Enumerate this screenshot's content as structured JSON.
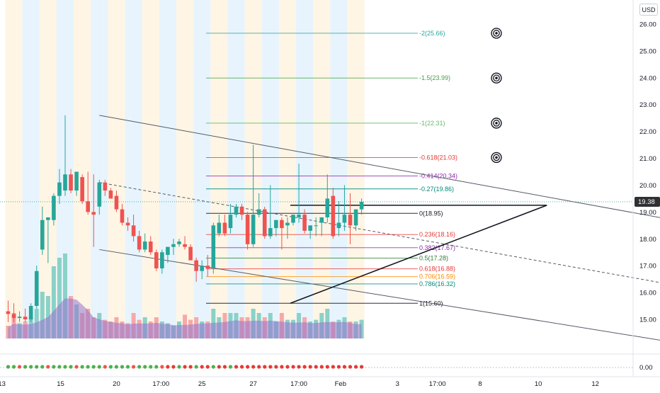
{
  "currency_badge": "USD",
  "last_price_label": "19.38",
  "colors": {
    "up": "#26a69a",
    "down": "#ef5350",
    "session_orange": "#fff3e0",
    "session_blue": "#e3f2fd",
    "volume_up": "#8bd1c8",
    "volume_down": "#f7a9a7",
    "volume_area": "#9575cd",
    "trendline": "#131722",
    "channel": "#787b86"
  },
  "chart_data": {
    "type": "candlestick",
    "y_axis": {
      "min": 14.3,
      "max": 26.8,
      "ticks": [
        "26.00",
        "25.00",
        "24.00",
        "23.00",
        "22.00",
        "21.00",
        "20.00",
        "19.00",
        "18.00",
        "17.00",
        "16.00",
        "15.00"
      ]
    },
    "indicator_axis_ticks": [
      "0.00"
    ],
    "x_axis_ticks": [
      "13",
      "15",
      "20",
      "17:00",
      "25",
      "27",
      "17:00",
      "Feb",
      "3",
      "17:00",
      "8",
      "10",
      "12"
    ],
    "candles": [
      {
        "o": 15.3,
        "h": 15.7,
        "l": 14.9,
        "c": 15.2
      },
      {
        "o": 15.2,
        "h": 15.6,
        "l": 14.9,
        "c": 15.05
      },
      {
        "o": 15.05,
        "h": 15.3,
        "l": 14.9,
        "c": 15.1
      },
      {
        "o": 15.1,
        "h": 15.4,
        "l": 14.9,
        "c": 15.0
      },
      {
        "o": 15.0,
        "h": 15.6,
        "l": 14.9,
        "c": 15.5
      },
      {
        "o": 15.5,
        "h": 17.0,
        "l": 15.4,
        "c": 16.8
      },
      {
        "o": 17.6,
        "h": 19.2,
        "l": 17.4,
        "c": 18.7
      },
      {
        "o": 18.7,
        "h": 18.8,
        "l": 17.1,
        "c": 18.8
      },
      {
        "o": 18.7,
        "h": 19.7,
        "l": 18.5,
        "c": 19.6
      },
      {
        "o": 19.6,
        "h": 20.6,
        "l": 19.3,
        "c": 20.1
      },
      {
        "o": 19.8,
        "h": 22.6,
        "l": 19.6,
        "c": 20.4
      },
      {
        "o": 20.4,
        "h": 20.6,
        "l": 19.7,
        "c": 19.8
      },
      {
        "o": 19.8,
        "h": 20.5,
        "l": 19.6,
        "c": 20.5
      },
      {
        "o": 20.3,
        "h": 20.4,
        "l": 19.3,
        "c": 19.4
      },
      {
        "o": 19.4,
        "h": 20.5,
        "l": 18.9,
        "c": 19.0
      },
      {
        "o": 19.0,
        "h": 20.4,
        "l": 17.7,
        "c": 18.9
      },
      {
        "o": 19.2,
        "h": 20.2,
        "l": 18.9,
        "c": 20.1
      },
      {
        "o": 20.1,
        "h": 20.2,
        "l": 19.6,
        "c": 19.8
      },
      {
        "o": 19.8,
        "h": 19.9,
        "l": 19.5,
        "c": 19.5
      },
      {
        "o": 19.6,
        "h": 19.8,
        "l": 19.0,
        "c": 19.1
      },
      {
        "o": 19.1,
        "h": 19.3,
        "l": 18.5,
        "c": 18.6
      },
      {
        "o": 18.6,
        "h": 18.8,
        "l": 18.3,
        "c": 18.5
      },
      {
        "o": 18.5,
        "h": 18.9,
        "l": 17.9,
        "c": 18.1
      },
      {
        "o": 18.1,
        "h": 18.3,
        "l": 17.5,
        "c": 17.6
      },
      {
        "o": 17.6,
        "h": 18.2,
        "l": 17.5,
        "c": 17.9
      },
      {
        "o": 17.9,
        "h": 18.1,
        "l": 17.4,
        "c": 17.5
      },
      {
        "o": 17.5,
        "h": 17.6,
        "l": 16.8,
        "c": 16.9
      },
      {
        "o": 16.9,
        "h": 17.6,
        "l": 16.7,
        "c": 17.5
      },
      {
        "o": 17.4,
        "h": 17.7,
        "l": 17.1,
        "c": 17.7
      },
      {
        "o": 17.7,
        "h": 18.0,
        "l": 17.4,
        "c": 17.8
      },
      {
        "o": 17.8,
        "h": 18.0,
        "l": 17.7,
        "c": 17.9
      },
      {
        "o": 17.8,
        "h": 18.1,
        "l": 17.6,
        "c": 17.7
      },
      {
        "o": 17.7,
        "h": 17.8,
        "l": 17.2,
        "c": 17.2
      },
      {
        "o": 17.2,
        "h": 17.3,
        "l": 16.4,
        "c": 16.8
      },
      {
        "o": 16.8,
        "h": 17.2,
        "l": 16.5,
        "c": 17.0
      },
      {
        "o": 17.0,
        "h": 17.4,
        "l": 16.6,
        "c": 16.9
      },
      {
        "o": 16.9,
        "h": 18.6,
        "l": 16.7,
        "c": 18.5
      },
      {
        "o": 18.2,
        "h": 18.9,
        "l": 18.1,
        "c": 18.6
      },
      {
        "o": 18.6,
        "h": 18.9,
        "l": 18.1,
        "c": 18.2
      },
      {
        "o": 18.4,
        "h": 19.3,
        "l": 18.2,
        "c": 18.9
      },
      {
        "o": 18.9,
        "h": 19.3,
        "l": 18.8,
        "c": 19.2
      },
      {
        "o": 19.2,
        "h": 19.3,
        "l": 18.7,
        "c": 18.9
      },
      {
        "o": 18.9,
        "h": 19.0,
        "l": 17.6,
        "c": 17.8
      },
      {
        "o": 17.8,
        "h": 21.5,
        "l": 17.7,
        "c": 18.9
      },
      {
        "o": 18.9,
        "h": 19.7,
        "l": 18.8,
        "c": 19.1
      },
      {
        "o": 19.1,
        "h": 19.2,
        "l": 18.0,
        "c": 18.1
      },
      {
        "o": 18.1,
        "h": 20.0,
        "l": 18.0,
        "c": 18.4
      },
      {
        "o": 18.4,
        "h": 18.7,
        "l": 18.1,
        "c": 18.7
      },
      {
        "o": 18.7,
        "h": 18.8,
        "l": 17.6,
        "c": 18.4
      },
      {
        "o": 18.5,
        "h": 18.8,
        "l": 18.0,
        "c": 18.6
      },
      {
        "o": 18.6,
        "h": 18.9,
        "l": 18.5,
        "c": 18.9
      },
      {
        "o": 18.8,
        "h": 20.8,
        "l": 18.6,
        "c": 18.9
      },
      {
        "o": 18.9,
        "h": 19.1,
        "l": 18.2,
        "c": 18.3
      },
      {
        "o": 18.3,
        "h": 18.5,
        "l": 18.0,
        "c": 18.5
      },
      {
        "o": 18.5,
        "h": 18.8,
        "l": 18.1,
        "c": 18.5
      },
      {
        "o": 18.6,
        "h": 18.8,
        "l": 18.1,
        "c": 18.8
      },
      {
        "o": 18.8,
        "h": 20.4,
        "l": 18.6,
        "c": 19.5
      },
      {
        "o": 19.6,
        "h": 19.9,
        "l": 18.0,
        "c": 18.1
      },
      {
        "o": 18.4,
        "h": 19.4,
        "l": 18.1,
        "c": 18.6
      },
      {
        "o": 18.6,
        "h": 20.0,
        "l": 18.3,
        "c": 18.9
      },
      {
        "o": 18.9,
        "h": 19.7,
        "l": 17.8,
        "c": 18.5
      },
      {
        "o": 18.5,
        "h": 19.1,
        "l": 18.3,
        "c": 19.1
      },
      {
        "o": 19.1,
        "h": 19.5,
        "l": 18.9,
        "c": 19.38
      }
    ],
    "volume": [
      0.15,
      0.3,
      0.18,
      0.2,
      0.25,
      0.35,
      0.55,
      0.5,
      0.85,
      0.95,
      1.0,
      0.5,
      0.4,
      0.3,
      0.35,
      0.25,
      0.3,
      0.22,
      0.2,
      0.25,
      0.2,
      0.18,
      0.3,
      0.22,
      0.25,
      0.2,
      0.25,
      0.2,
      0.18,
      0.15,
      0.2,
      0.28,
      0.22,
      0.25,
      0.2,
      0.2,
      0.35,
      0.25,
      0.3,
      0.3,
      0.3,
      0.25,
      0.25,
      0.35,
      0.3,
      0.25,
      0.3,
      0.2,
      0.3,
      0.22,
      0.22,
      0.3,
      0.25,
      0.2,
      0.22,
      0.3,
      0.35,
      0.2,
      0.22,
      0.25,
      0.2,
      0.2,
      0.22
    ],
    "fibonacci": {
      "levels": [
        {
          "label": "-2(25.66)",
          "value": 25.66,
          "color": "#26a69a"
        },
        {
          "label": "-1.5(23.99)",
          "value": 23.99,
          "color": "#43a047"
        },
        {
          "label": "-1(22.31)",
          "value": 22.31,
          "color": "#66bb6a"
        },
        {
          "label": "-0.618(21.03)",
          "value": 21.03,
          "color": "#e53935"
        },
        {
          "label": "-0.414(20.34)",
          "value": 20.34,
          "color": "#8e24aa"
        },
        {
          "label": "-0.27(19.86)",
          "value": 19.86,
          "color": "#00897b"
        },
        {
          "label": "0(18.95)",
          "value": 18.95,
          "color": "#131722"
        },
        {
          "label": "0.236(18.16)",
          "value": 18.16,
          "color": "#e53935"
        },
        {
          "label": "0.382(17.67)",
          "value": 17.67,
          "color": "#8e24aa"
        },
        {
          "label": "0.5(17.28)",
          "value": 17.28,
          "color": "#2e7d32"
        },
        {
          "label": "0.618(16.88)",
          "value": 16.88,
          "color": "#e53935"
        },
        {
          "label": "0.706(16.59)",
          "value": 16.59,
          "color": "#fb8c00"
        },
        {
          "label": "0.786(16.32)",
          "value": 16.32,
          "color": "#00897b"
        },
        {
          "label": "1(15.60)",
          "value": 15.6,
          "color": "#131722"
        }
      ]
    },
    "drawings": {
      "channel_upper": [
        [
          16,
          22.6
        ],
        [
          140,
          17.8
        ]
      ],
      "channel_lower": [
        [
          16,
          17.6
        ],
        [
          118,
          14.1
        ]
      ],
      "channel_mid_dashed": [
        [
          16,
          20.1
        ],
        [
          140,
          15.4
        ]
      ],
      "triangle_top": [
        [
          49.5,
          19.25
        ],
        [
          94.5,
          19.25
        ]
      ],
      "triangle_bottom": [
        [
          49.5,
          15.6
        ],
        [
          94.5,
          19.25
        ]
      ]
    },
    "target_markers": [
      25.66,
      23.99,
      22.31,
      21.03
    ],
    "grid": false,
    "legend": "none"
  }
}
